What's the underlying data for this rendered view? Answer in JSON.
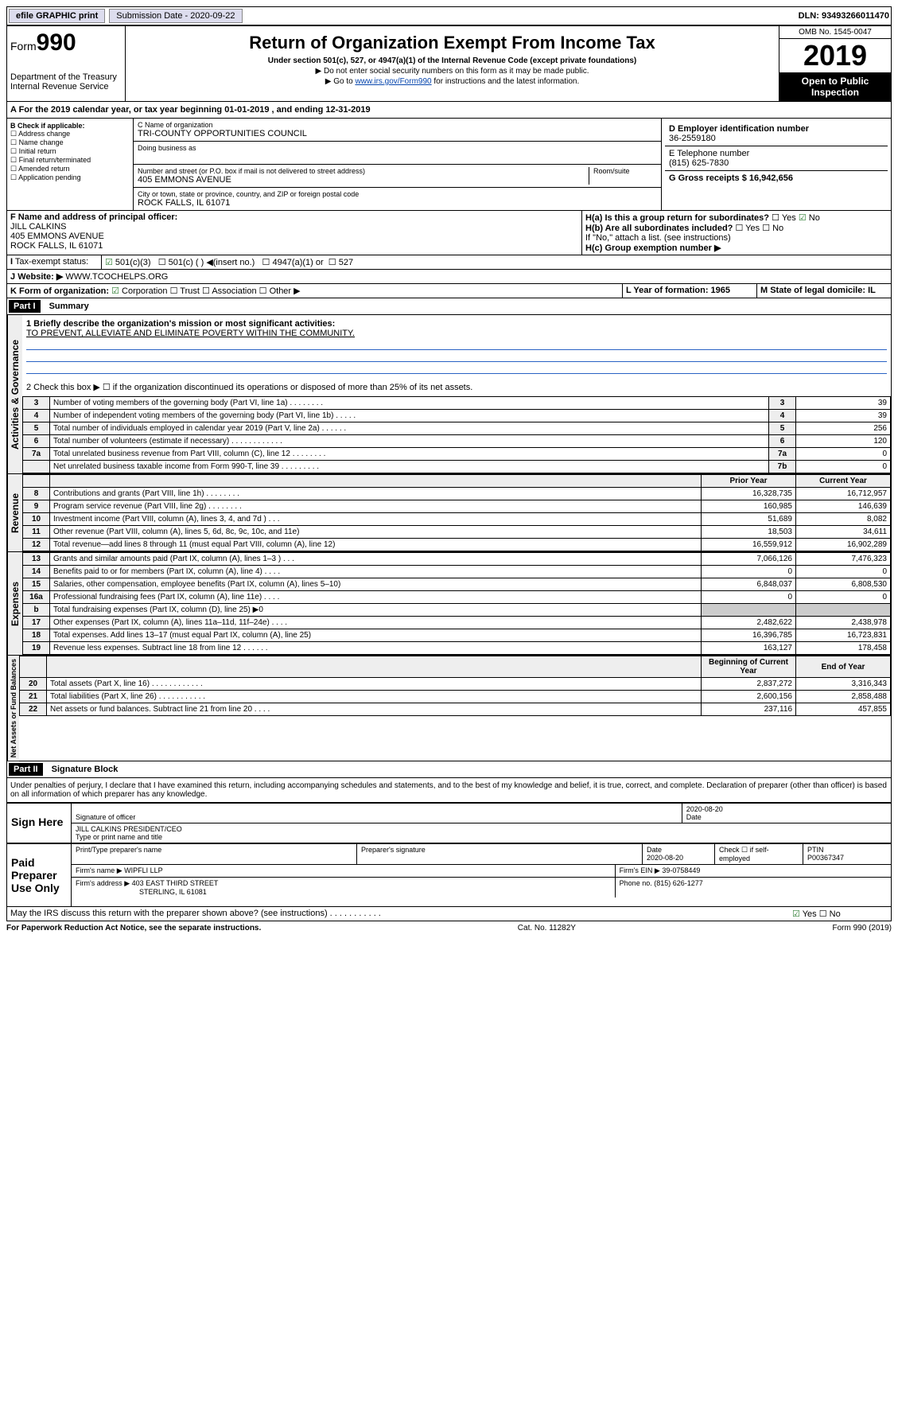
{
  "topbar": {
    "efile": "efile GRAPHIC print",
    "submission_label": "Submission Date - 2020-09-22",
    "dln": "DLN: 93493266011470"
  },
  "header": {
    "form_label": "Form",
    "form_num": "990",
    "dept": "Department of the Treasury",
    "irs": "Internal Revenue Service",
    "title": "Return of Organization Exempt From Income Tax",
    "sub1": "Under section 501(c), 527, or 4947(a)(1) of the Internal Revenue Code (except private foundations)",
    "sub2": "▶ Do not enter social security numbers on this form as it may be made public.",
    "sub3_pre": "▶ Go to ",
    "sub3_link": "www.irs.gov/Form990",
    "sub3_post": " for instructions and the latest information.",
    "omb": "OMB No. 1545-0047",
    "year": "2019",
    "inspect": "Open to Public Inspection"
  },
  "line_a": "A For the 2019 calendar year, or tax year beginning 01-01-2019   , and ending 12-31-2019",
  "box_b": {
    "title": "B Check if applicable:",
    "opts": [
      "Address change",
      "Name change",
      "Initial return",
      "Final return/terminated",
      "Amended return",
      "Application pending"
    ]
  },
  "box_c": {
    "name_label": "C Name of organization",
    "name": "TRI-COUNTY OPPORTUNITIES COUNCIL",
    "dba_label": "Doing business as",
    "addr_label": "Number and street (or P.O. box if mail is not delivered to street address)",
    "room_label": "Room/suite",
    "addr": "405 EMMONS AVENUE",
    "city_label": "City or town, state or province, country, and ZIP or foreign postal code",
    "city": "ROCK FALLS, IL  61071"
  },
  "box_d": {
    "label": "D Employer identification number",
    "val": "36-2559180"
  },
  "box_e": {
    "label": "E Telephone number",
    "val": "(815) 625-7830"
  },
  "box_g": {
    "label": "G Gross receipts $ 16,942,656"
  },
  "box_f": {
    "label": "F Name and address of principal officer:",
    "name": "JILL CALKINS",
    "addr1": "405 EMMONS AVENUE",
    "addr2": "ROCK FALLS, IL  61071"
  },
  "box_h": {
    "a": "H(a)  Is this a group return for subordinates?",
    "b": "H(b)  Are all subordinates included?",
    "b_note": "If \"No,\" attach a list. (see instructions)",
    "c": "H(c)  Group exemption number ▶"
  },
  "yes": "Yes",
  "no": "No",
  "box_i": {
    "label": "Tax-exempt status:",
    "o1": "501(c)(3)",
    "o2": "501(c) (  ) ◀(insert no.)",
    "o3": "4947(a)(1) or",
    "o4": "527"
  },
  "box_j": {
    "label": "Website: ▶",
    "val": "WWW.TCOCHELPS.ORG"
  },
  "box_k": {
    "label": "K Form of organization:",
    "o1": "Corporation",
    "o2": "Trust",
    "o3": "Association",
    "o4": "Other ▶"
  },
  "box_l": {
    "label": "L Year of formation: 1965"
  },
  "box_m": {
    "label": "M State of legal domicile: IL"
  },
  "part1": {
    "hdr": "Part I",
    "title": "Summary",
    "sidebar1": "Activities & Governance",
    "sidebar2": "Revenue",
    "sidebar3": "Expenses",
    "sidebar4": "Net Assets or Fund Balances",
    "q1": "1  Briefly describe the organization's mission or most significant activities:",
    "q1_ans": "TO PREVENT, ALLEVIATE AND ELIMINATE POVERTY WITHIN THE COMMUNITY.",
    "q2": "2  Check this box ▶ ☐  if the organization discontinued its operations or disposed of more than 25% of its net assets.",
    "rows_gov": [
      {
        "n": "3",
        "d": "Number of voting members of the governing body (Part VI, line 1a)   .    .    .    .    .    .    .    .",
        "b": "3",
        "v": "39"
      },
      {
        "n": "4",
        "d": "Number of independent voting members of the governing body (Part VI, line 1b)   .    .    .    .    .",
        "b": "4",
        "v": "39"
      },
      {
        "n": "5",
        "d": "Total number of individuals employed in calendar year 2019 (Part V, line 2a)   .    .    .    .    .    .",
        "b": "5",
        "v": "256"
      },
      {
        "n": "6",
        "d": "Total number of volunteers (estimate if necessary)   .    .    .    .    .    .    .    .    .    .    .    .",
        "b": "6",
        "v": "120"
      },
      {
        "n": "7a",
        "d": "Total unrelated business revenue from Part VIII, column (C), line 12   .    .    .    .    .    .    .    .",
        "b": "7a",
        "v": "0"
      },
      {
        "n": "",
        "d": "Net unrelated business taxable income from Form 990-T, line 39   .    .    .    .    .    .    .    .    .",
        "b": "7b",
        "v": "0"
      }
    ],
    "hdr_prior": "Prior Year",
    "hdr_current": "Current Year",
    "rows_rev": [
      {
        "n": "8",
        "d": "Contributions and grants (Part VIII, line 1h)   .    .    .    .    .    .    .    .",
        "p": "16,328,735",
        "c": "16,712,957"
      },
      {
        "n": "9",
        "d": "Program service revenue (Part VIII, line 2g)   .    .    .    .    .    .    .    .",
        "p": "160,985",
        "c": "146,639"
      },
      {
        "n": "10",
        "d": "Investment income (Part VIII, column (A), lines 3, 4, and 7d )   .    .    .",
        "p": "51,689",
        "c": "8,082"
      },
      {
        "n": "11",
        "d": "Other revenue (Part VIII, column (A), lines 5, 6d, 8c, 9c, 10c, and 11e)",
        "p": "18,503",
        "c": "34,611"
      },
      {
        "n": "12",
        "d": "Total revenue—add lines 8 through 11 (must equal Part VIII, column (A), line 12)",
        "p": "16,559,912",
        "c": "16,902,289"
      }
    ],
    "rows_exp": [
      {
        "n": "13",
        "d": "Grants and similar amounts paid (Part IX, column (A), lines 1–3 )   .    .    .",
        "p": "7,066,126",
        "c": "7,476,323"
      },
      {
        "n": "14",
        "d": "Benefits paid to or for members (Part IX, column (A), line 4)   .    .    .    .",
        "p": "0",
        "c": "0"
      },
      {
        "n": "15",
        "d": "Salaries, other compensation, employee benefits (Part IX, column (A), lines 5–10)",
        "p": "6,848,037",
        "c": "6,808,530"
      },
      {
        "n": "16a",
        "d": "Professional fundraising fees (Part IX, column (A), line 11e)   .    .    .    .",
        "p": "0",
        "c": "0"
      },
      {
        "n": "b",
        "d": "Total fundraising expenses (Part IX, column (D), line 25) ▶0",
        "p": "",
        "c": ""
      },
      {
        "n": "17",
        "d": "Other expenses (Part IX, column (A), lines 11a–11d, 11f–24e)   .    .    .    .",
        "p": "2,482,622",
        "c": "2,438,978"
      },
      {
        "n": "18",
        "d": "Total expenses. Add lines 13–17 (must equal Part IX, column (A), line 25)",
        "p": "16,396,785",
        "c": "16,723,831"
      },
      {
        "n": "19",
        "d": "Revenue less expenses. Subtract line 18 from line 12   .    .    .    .    .    .",
        "p": "163,127",
        "c": "178,458"
      }
    ],
    "hdr_begin": "Beginning of Current Year",
    "hdr_end": "End of Year",
    "rows_net": [
      {
        "n": "20",
        "d": "Total assets (Part X, line 16)   .    .    .    .    .    .    .    .    .    .    .    .",
        "p": "2,837,272",
        "c": "3,316,343"
      },
      {
        "n": "21",
        "d": "Total liabilities (Part X, line 26)   .    .    .    .    .    .    .    .    .    .    .",
        "p": "2,600,156",
        "c": "2,858,488"
      },
      {
        "n": "22",
        "d": "Net assets or fund balances. Subtract line 21 from line 20   .    .    .    .",
        "p": "237,116",
        "c": "457,855"
      }
    ]
  },
  "part2": {
    "hdr": "Part II",
    "title": "Signature Block",
    "perjury": "Under penalties of perjury, I declare that I have examined this return, including accompanying schedules and statements, and to the best of my knowledge and belief, it is true, correct, and complete. Declaration of preparer (other than officer) is based on all information of which preparer has any knowledge.",
    "sign_here": "Sign Here",
    "sig_officer": "Signature of officer",
    "sig_date": "2020-08-20",
    "date_label": "Date",
    "officer_name": "JILL CALKINS PRESIDENT/CEO",
    "type_name": "Type or print name and title",
    "paid": "Paid Preparer Use Only",
    "prep_name_label": "Print/Type preparer's name",
    "prep_sig_label": "Preparer's signature",
    "prep_date": "2020-08-20",
    "check_self": "Check ☐ if self-employed",
    "ptin_label": "PTIN",
    "ptin": "P00367347",
    "firm_name_label": "Firm's name    ▶",
    "firm_name": "WIPFLI LLP",
    "firm_ein_label": "Firm's EIN ▶",
    "firm_ein": "39-0758449",
    "firm_addr_label": "Firm's address ▶",
    "firm_addr": "403 EAST THIRD STREET",
    "firm_city": "STERLING, IL  61081",
    "phone_label": "Phone no.",
    "phone": "(815) 626-1277",
    "discuss": "May the IRS discuss this return with the preparer shown above? (see instructions)   .    .    .    .    .    .    .    .    .    .    .",
    "paperwork": "For Paperwork Reduction Act Notice, see the separate instructions.",
    "cat": "Cat. No. 11282Y",
    "formref": "Form 990 (2019)"
  }
}
